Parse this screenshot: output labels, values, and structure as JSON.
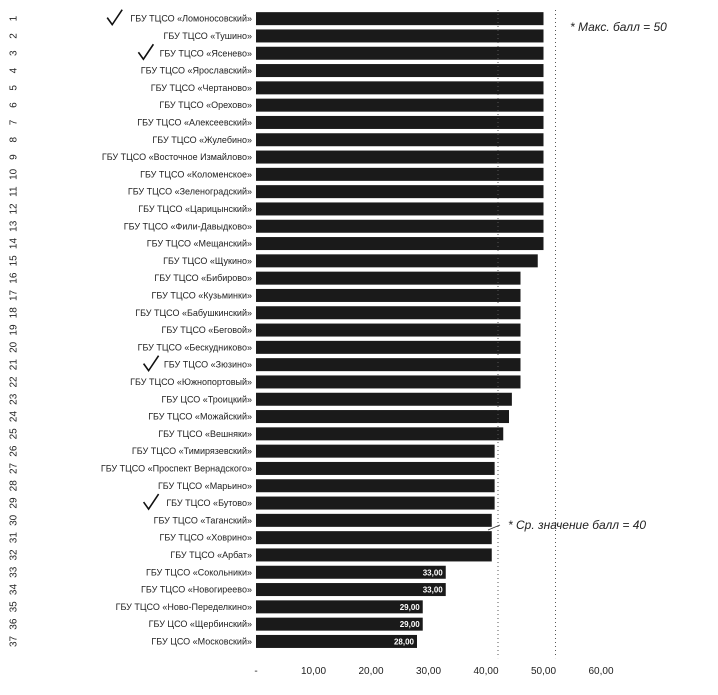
{
  "chart_data": {
    "type": "bar",
    "orientation": "horizontal",
    "categories": [
      "ГБУ ТЦСО «Ломоносовский»",
      "ГБУ ТЦСО «Тушино»",
      "ГБУ ТЦСО «Ясенево»",
      "ГБУ ТЦСО «Ярославский»",
      "ГБУ ТЦСО «Чертаново»",
      "ГБУ ТЦСО «Орехово»",
      "ГБУ ТЦСО «Алексеевский»",
      "ГБУ ТЦСО «Жулебино»",
      "ГБУ ТЦСО «Восточное Измайлово»",
      "ГБУ ТЦСО «Коломенское»",
      "ГБУ ТЦСО «Зеленоградский»",
      "ГБУ ТЦСО «Царицынский»",
      "ГБУ ТЦСО «Фили-Давыдково»",
      "ГБУ ТЦСО «Мещанский»",
      "ГБУ ТЦСО «Щукино»",
      "ГБУ ТЦСО «Бибирово»",
      "ГБУ ТЦСО «Кузьминки»",
      "ГБУ ТЦСО «Бабушкинский»",
      "ГБУ ТЦСО «Беговой»",
      "ГБУ ТЦСО «Бескудниково»",
      "ГБУ ТЦСО «Зюзино»",
      "ГБУ ТЦСО «Южнопортовый»",
      "ГБУ ЦСО «Троицкий»",
      "ГБУ ТЦСО «Можайский»",
      "ГБУ ТЦСО «Вешняки»",
      "ГБУ ТЦСО «Тимирязевский»",
      "ГБУ ТЦСО «Проспект Вернадского»",
      "ГБУ ТЦСО «Марьино»",
      "ГБУ ТЦСО «Бутово»",
      "ГБУ ТЦСО «Таганский»",
      "ГБУ ТЦСО «Ховрино»",
      "ГБУ ТЦСО «Арбат»",
      "ГБУ ТЦСО «Сокольники»",
      "ГБУ ТЦСО «Новогиреево»",
      "ГБУ ТЦСО «Ново-Переделкино»",
      "ГБУ ЦСО «Щербинский»",
      "ГБУ ЦСО «Московский»"
    ],
    "ranks": [
      "1",
      "2",
      "3",
      "4",
      "5",
      "6",
      "7",
      "8",
      "9",
      "10",
      "11",
      "12",
      "13",
      "14",
      "15",
      "16",
      "17",
      "18",
      "19",
      "20",
      "21",
      "22",
      "23",
      "24",
      "25",
      "26",
      "27",
      "28",
      "29",
      "30",
      "31",
      "32",
      "33",
      "34",
      "35",
      "36",
      "37"
    ],
    "values": [
      50,
      50,
      50,
      50,
      50,
      50,
      50,
      50,
      50,
      50,
      50,
      50,
      50,
      50,
      49,
      46,
      46,
      46,
      46,
      46,
      46,
      46,
      44.5,
      44,
      43,
      41.5,
      41.5,
      41.5,
      41.5,
      41,
      41,
      41,
      33,
      33,
      29,
      29,
      28
    ],
    "data_labels": [
      "",
      "",
      "",
      "",
      "",
      "",
      "",
      "",
      "",
      "",
      "",
      "",
      "",
      "",
      "",
      "",
      "",
      "",
      "",
      "",
      "",
      "",
      "",
      "",
      "",
      "",
      "",
      "",
      "",
      "",
      "",
      "",
      "33,00",
      "33,00",
      "29,00",
      "29,00",
      "28,00"
    ],
    "xlim": [
      0,
      60
    ],
    "xticks": [
      "-",
      "10,00",
      "20,00",
      "30,00",
      "40,00",
      "50,00",
      "60,00"
    ],
    "xtick_values": [
      0,
      10,
      20,
      30,
      40,
      50,
      60
    ],
    "bar_color": "#1a1a1a",
    "checkmarks_on_rows": [
      1,
      3,
      21,
      29
    ],
    "reference_lines": [
      50,
      40
    ],
    "annotations": [
      {
        "text": "*  Макс. балл = 50",
        "near_value": 50
      },
      {
        "text": "*  Ср. значение балл = 40",
        "near_value": 40
      }
    ],
    "grid": false,
    "legend": "none"
  }
}
